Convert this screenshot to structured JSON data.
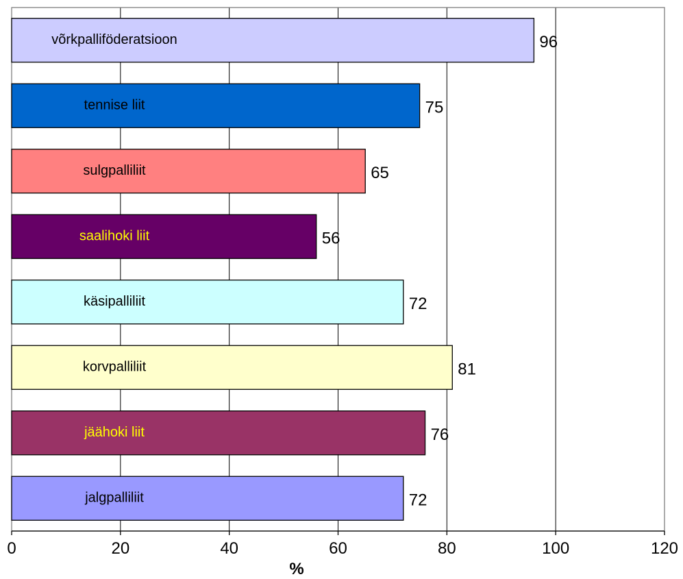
{
  "chart_data": {
    "type": "bar",
    "orientation": "horizontal",
    "categories": [
      "võrkpalliföderatsioon",
      "tennise liit",
      "sulgpalliliit",
      "saalihoki liit",
      "käsipalliliit",
      "korvpalliliit",
      "jäähoki liit",
      "jalgpalliliit"
    ],
    "values": [
      96,
      75,
      65,
      56,
      72,
      81,
      76,
      72
    ],
    "bar_colors": [
      "#CCCCFF",
      "#0066CC",
      "#FF8080",
      "#660066",
      "#CCFFFF",
      "#FFFFCC",
      "#993366",
      "#9999FF"
    ],
    "label_colors": [
      "#000000",
      "#000000",
      "#000000",
      "#FFFF00",
      "#000000",
      "#000000",
      "#FFFF00",
      "#000000"
    ],
    "xlabel": "%",
    "ylabel": "",
    "title": "",
    "xlim": [
      0,
      120
    ],
    "xticks": [
      "0",
      "20",
      "40",
      "60",
      "80",
      "100",
      "120"
    ],
    "grid": "vertical",
    "legend": "none",
    "data_labels": true
  }
}
